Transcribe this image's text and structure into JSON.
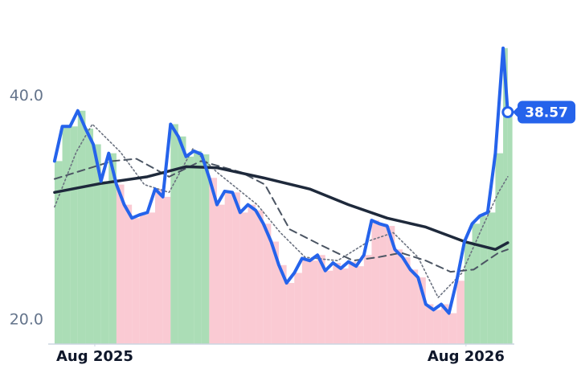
{
  "chart_data": {
    "type": "line",
    "xlim": [
      -1.35,
      13.5
    ],
    "xticks": [
      {
        "value": 0,
        "label": "Aug 2025"
      },
      {
        "value": 12,
        "label": "Aug 2026"
      }
    ],
    "ylim": [
      17.84,
      48.6
    ],
    "yticks": [
      {
        "value": 20,
        "label": "20.0"
      },
      {
        "value": 40,
        "label": "40.0"
      }
    ],
    "up_color": "#8fd19e",
    "down_color": "#f8b4c0",
    "series": [
      {
        "color": "#2563eb",
        "style": "solid",
        "width": 4,
        "x": [
          -1.3,
          -1.05,
          -0.8,
          -0.55,
          -0.3,
          -0.05,
          0.2,
          0.45,
          0.7,
          0.95,
          1.2,
          1.45,
          1.7,
          1.95,
          2.2,
          2.45,
          2.7,
          2.95,
          3.2,
          3.45,
          3.7,
          3.95,
          4.2,
          4.45,
          4.7,
          4.95,
          5.2,
          5.45,
          5.7,
          5.95,
          6.2,
          6.45,
          6.7,
          6.95,
          7.2,
          7.45,
          7.7,
          7.95,
          8.2,
          8.45,
          8.7,
          8.95,
          9.2,
          9.45,
          9.7,
          9.95,
          10.2,
          10.45,
          10.7,
          10.95,
          11.2,
          11.45,
          11.7,
          11.95,
          12.2,
          12.45,
          12.7,
          12.95,
          13.2,
          13.35
        ],
        "values": [
          34.2,
          37.3,
          37.3,
          38.7,
          37.1,
          35.7,
          32.4,
          34.9,
          32.1,
          30.3,
          29.1,
          29.4,
          29.6,
          31.7,
          31.0,
          37.5,
          36.4,
          34.6,
          35.1,
          34.8,
          32.7,
          30.3,
          31.5,
          31.4,
          29.6,
          30.3,
          29.8,
          28.6,
          27.0,
          24.9,
          23.3,
          24.2,
          25.5,
          25.3,
          25.8,
          24.4,
          25.1,
          24.6,
          25.2,
          24.8,
          25.8,
          28.9,
          28.6,
          28.4,
          26.3,
          25.6,
          24.5,
          23.8,
          21.4,
          20.9,
          21.4,
          20.6,
          23.5,
          27.0,
          28.6,
          29.3,
          29.6,
          34.9,
          44.3,
          38.57
        ]
      },
      {
        "color": "#1e293b",
        "style": "solid",
        "width": 3.5,
        "x": [
          -1.3,
          0.2,
          1.7,
          2.95,
          3.95,
          5.45,
          6.95,
          8.2,
          9.45,
          10.7,
          11.95,
          12.95,
          13.35
        ],
        "values": [
          31.4,
          32.2,
          32.8,
          33.7,
          33.6,
          32.7,
          31.7,
          30.3,
          29.1,
          28.3,
          27.0,
          26.3,
          26.9
        ]
      },
      {
        "color": "#4b5563",
        "style": "dashed",
        "width": 2,
        "x": [
          -1.3,
          0.57,
          1.35,
          2.4,
          3.43,
          4.73,
          5.5,
          6.3,
          7.3,
          8.35,
          9.15,
          9.9,
          10.7,
          11.5,
          12.25,
          13.05,
          13.35
        ],
        "values": [
          32.6,
          34.2,
          34.4,
          32.8,
          34.2,
          33.2,
          32.1,
          28.1,
          26.7,
          25.3,
          25.6,
          26.0,
          25.3,
          24.3,
          24.5,
          26.0,
          26.3
        ]
      },
      {
        "color": "#6b7280",
        "style": "dotted",
        "width": 1.6,
        "x": [
          -1.3,
          -0.6,
          -0.08,
          0.83,
          1.6,
          2.4,
          3.17,
          3.95,
          5.25,
          6.0,
          6.8,
          7.85,
          8.9,
          9.65,
          10.45,
          11.1,
          11.87,
          12.5,
          13.05,
          13.35
        ],
        "values": [
          30.1,
          35.0,
          37.5,
          35.0,
          32.1,
          31.4,
          35.3,
          33.2,
          30.3,
          27.8,
          25.6,
          25.3,
          27.1,
          27.8,
          25.6,
          22.0,
          24.2,
          28.1,
          31.4,
          32.8
        ]
      }
    ]
  }
}
